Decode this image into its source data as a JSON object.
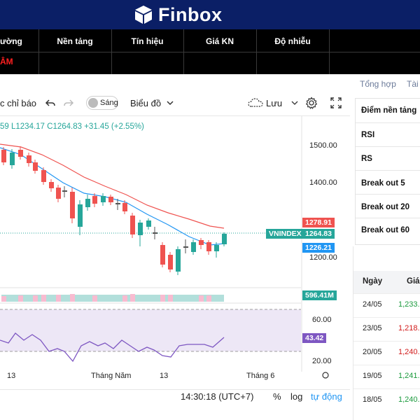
{
  "header": {
    "brand": "Finbox"
  },
  "nav": {
    "row1": [
      "ường",
      "Nền tảng",
      "Tín hiệu",
      "Giá KN",
      "Độ nhiễu"
    ],
    "row2_red": "ÂM"
  },
  "toolbar": {
    "indicators": "c chỉ báo",
    "theme_toggle": "Sáng",
    "chart_type": "Biểu đồ",
    "save": "Lưu"
  },
  "legend": {
    "text": "59  L1234.17  C1264.83  +31.45 (+2.55%)"
  },
  "price_axis": {
    "ticks": [
      "1500.00",
      "1400.00",
      "1200.00"
    ],
    "tags": {
      "ma_red": "1278.91",
      "symbol": "VNINDEX",
      "last": "1264.83",
      "ma_blue": "1226.21",
      "volume": "596.41M",
      "rsi": "43.42"
    },
    "rsi_ticks": [
      "60.00",
      "20.00"
    ]
  },
  "time_axis": {
    "labels": [
      "13",
      "Tháng Năm",
      "13",
      "Tháng 6"
    ]
  },
  "bottom": {
    "time": "14:30:18 (UTC+7)",
    "pct": "%",
    "log": "log",
    "auto": "tự động"
  },
  "right_panel": {
    "tabs": [
      "Tổng hợp",
      "Tài"
    ],
    "stats": [
      "Điểm nền tảng",
      "RSI",
      "RS",
      "Break out 5",
      "Break out 20",
      "Break out 60"
    ],
    "history_headers": [
      "Ngày",
      "Giá"
    ],
    "history": [
      {
        "date": "24/05",
        "price": "1,233.",
        "color": "#1a9a3c"
      },
      {
        "date": "23/05",
        "price": "1,218.",
        "color": "#d11a1a"
      },
      {
        "date": "20/05",
        "price": "1,240.",
        "color": "#d11a1a"
      },
      {
        "date": "19/05",
        "price": "1,241.",
        "color": "#1a9a3c"
      },
      {
        "date": "18/05",
        "price": "1,240.",
        "color": "#1a9a3c"
      }
    ]
  },
  "colors": {
    "up": "#26a69a",
    "down": "#ef5350",
    "ma_red": "#ef5350",
    "ma_blue": "#2196f3",
    "rsi": "#7e57c2",
    "header": "#0b1f66"
  }
}
